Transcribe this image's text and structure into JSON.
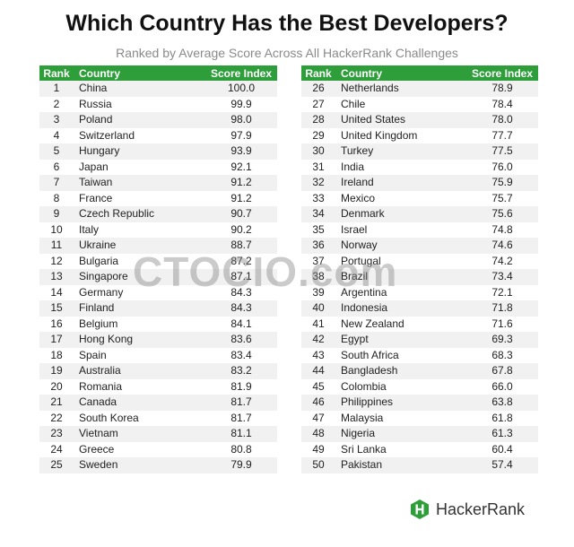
{
  "chart_data": {
    "type": "table",
    "title": "Which Country Has the Best Developers?",
    "subtitle": "Ranked by Average Score Across All HackerRank Challenges",
    "columns": [
      "Rank",
      "Country",
      "Score Index"
    ],
    "rows": [
      [
        1,
        "China",
        "100.0"
      ],
      [
        2,
        "Russia",
        "99.9"
      ],
      [
        3,
        "Poland",
        "98.0"
      ],
      [
        4,
        "Switzerland",
        "97.9"
      ],
      [
        5,
        "Hungary",
        "93.9"
      ],
      [
        6,
        "Japan",
        "92.1"
      ],
      [
        7,
        "Taiwan",
        "91.2"
      ],
      [
        8,
        "France",
        "91.2"
      ],
      [
        9,
        "Czech Republic",
        "90.7"
      ],
      [
        10,
        "Italy",
        "90.2"
      ],
      [
        11,
        "Ukraine",
        "88.7"
      ],
      [
        12,
        "Bulgaria",
        "87.2"
      ],
      [
        13,
        "Singapore",
        "87.1"
      ],
      [
        14,
        "Germany",
        "84.3"
      ],
      [
        15,
        "Finland",
        "84.3"
      ],
      [
        16,
        "Belgium",
        "84.1"
      ],
      [
        17,
        "Hong Kong",
        "83.6"
      ],
      [
        18,
        "Spain",
        "83.4"
      ],
      [
        19,
        "Australia",
        "83.2"
      ],
      [
        20,
        "Romania",
        "81.9"
      ],
      [
        21,
        "Canada",
        "81.7"
      ],
      [
        22,
        "South Korea",
        "81.7"
      ],
      [
        23,
        "Vietnam",
        "81.1"
      ],
      [
        24,
        "Greece",
        "80.8"
      ],
      [
        25,
        "Sweden",
        "79.9"
      ],
      [
        26,
        "Netherlands",
        "78.9"
      ],
      [
        27,
        "Chile",
        "78.4"
      ],
      [
        28,
        "United States",
        "78.0"
      ],
      [
        29,
        "United Kingdom",
        "77.7"
      ],
      [
        30,
        "Turkey",
        "77.5"
      ],
      [
        31,
        "India",
        "76.0"
      ],
      [
        32,
        "Ireland",
        "75.9"
      ],
      [
        33,
        "Mexico",
        "75.7"
      ],
      [
        34,
        "Denmark",
        "75.6"
      ],
      [
        35,
        "Israel",
        "74.8"
      ],
      [
        36,
        "Norway",
        "74.6"
      ],
      [
        37,
        "Portugal",
        "74.2"
      ],
      [
        38,
        "Brazil",
        "73.4"
      ],
      [
        39,
        "Argentina",
        "72.1"
      ],
      [
        40,
        "Indonesia",
        "71.8"
      ],
      [
        41,
        "New Zealand",
        "71.6"
      ],
      [
        42,
        "Egypt",
        "69.3"
      ],
      [
        43,
        "South Africa",
        "68.3"
      ],
      [
        44,
        "Bangladesh",
        "67.8"
      ],
      [
        45,
        "Colombia",
        "66.0"
      ],
      [
        46,
        "Philippines",
        "63.8"
      ],
      [
        47,
        "Malaysia",
        "61.8"
      ],
      [
        48,
        "Nigeria",
        "61.3"
      ],
      [
        49,
        "Sri Lanka",
        "60.4"
      ],
      [
        50,
        "Pakistan",
        "57.4"
      ]
    ]
  },
  "watermark": "CTOCIO.com",
  "brand": {
    "name": "HackerRank",
    "icon": "hackerrank-logo-icon",
    "color": "#2e9e3b"
  },
  "colors": {
    "header": "#2e9e3b",
    "stripe": "#f1f1f1"
  }
}
